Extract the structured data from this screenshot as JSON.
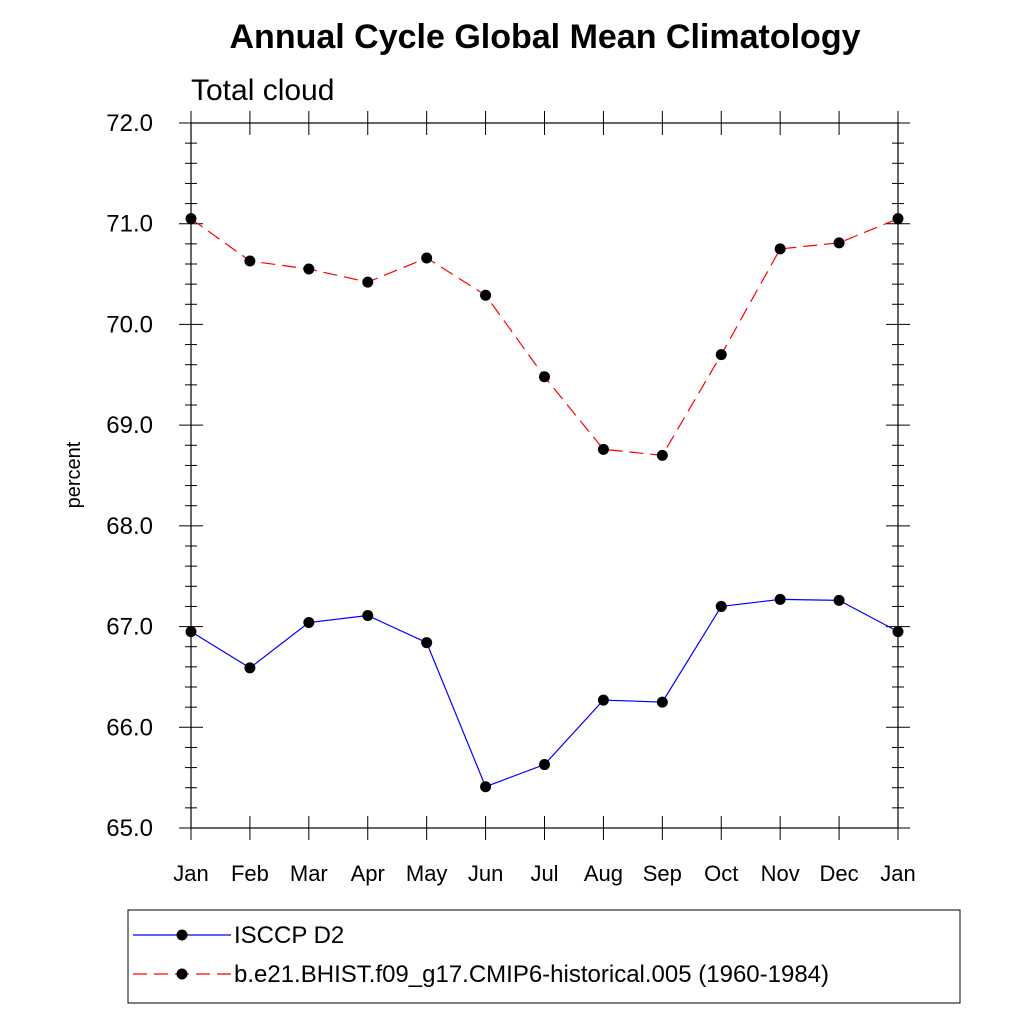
{
  "chart_data": {
    "type": "line",
    "title": "Annual Cycle Global Mean Climatology",
    "subtitle": "Total cloud",
    "xlabel": "",
    "ylabel": "percent",
    "categories": [
      "Jan",
      "Feb",
      "Mar",
      "Apr",
      "May",
      "Jun",
      "Jul",
      "Aug",
      "Sep",
      "Oct",
      "Nov",
      "Dec",
      "Jan"
    ],
    "ylim": [
      65.0,
      72.0
    ],
    "yticks": [
      "65.0",
      "66.0",
      "67.0",
      "68.0",
      "69.0",
      "70.0",
      "71.0",
      "72.0"
    ],
    "grid": false,
    "legend_position": "bottom",
    "series": [
      {
        "name": "ISCCP D2",
        "color": "#0000ff",
        "line_style": "solid",
        "marker": "filled-circle",
        "values": [
          66.95,
          66.59,
          67.04,
          67.11,
          66.84,
          65.41,
          65.63,
          66.27,
          66.25,
          67.2,
          67.27,
          67.26,
          66.95
        ]
      },
      {
        "name": "b.e21.BHIST.f09_g17.CMIP6-historical.005 (1960-1984)",
        "color": "#ff0000",
        "line_style": "dashed",
        "marker": "filled-circle",
        "values": [
          71.05,
          70.63,
          70.55,
          70.42,
          70.66,
          70.29,
          69.48,
          68.76,
          68.7,
          69.7,
          70.75,
          70.81,
          71.05
        ]
      }
    ]
  }
}
